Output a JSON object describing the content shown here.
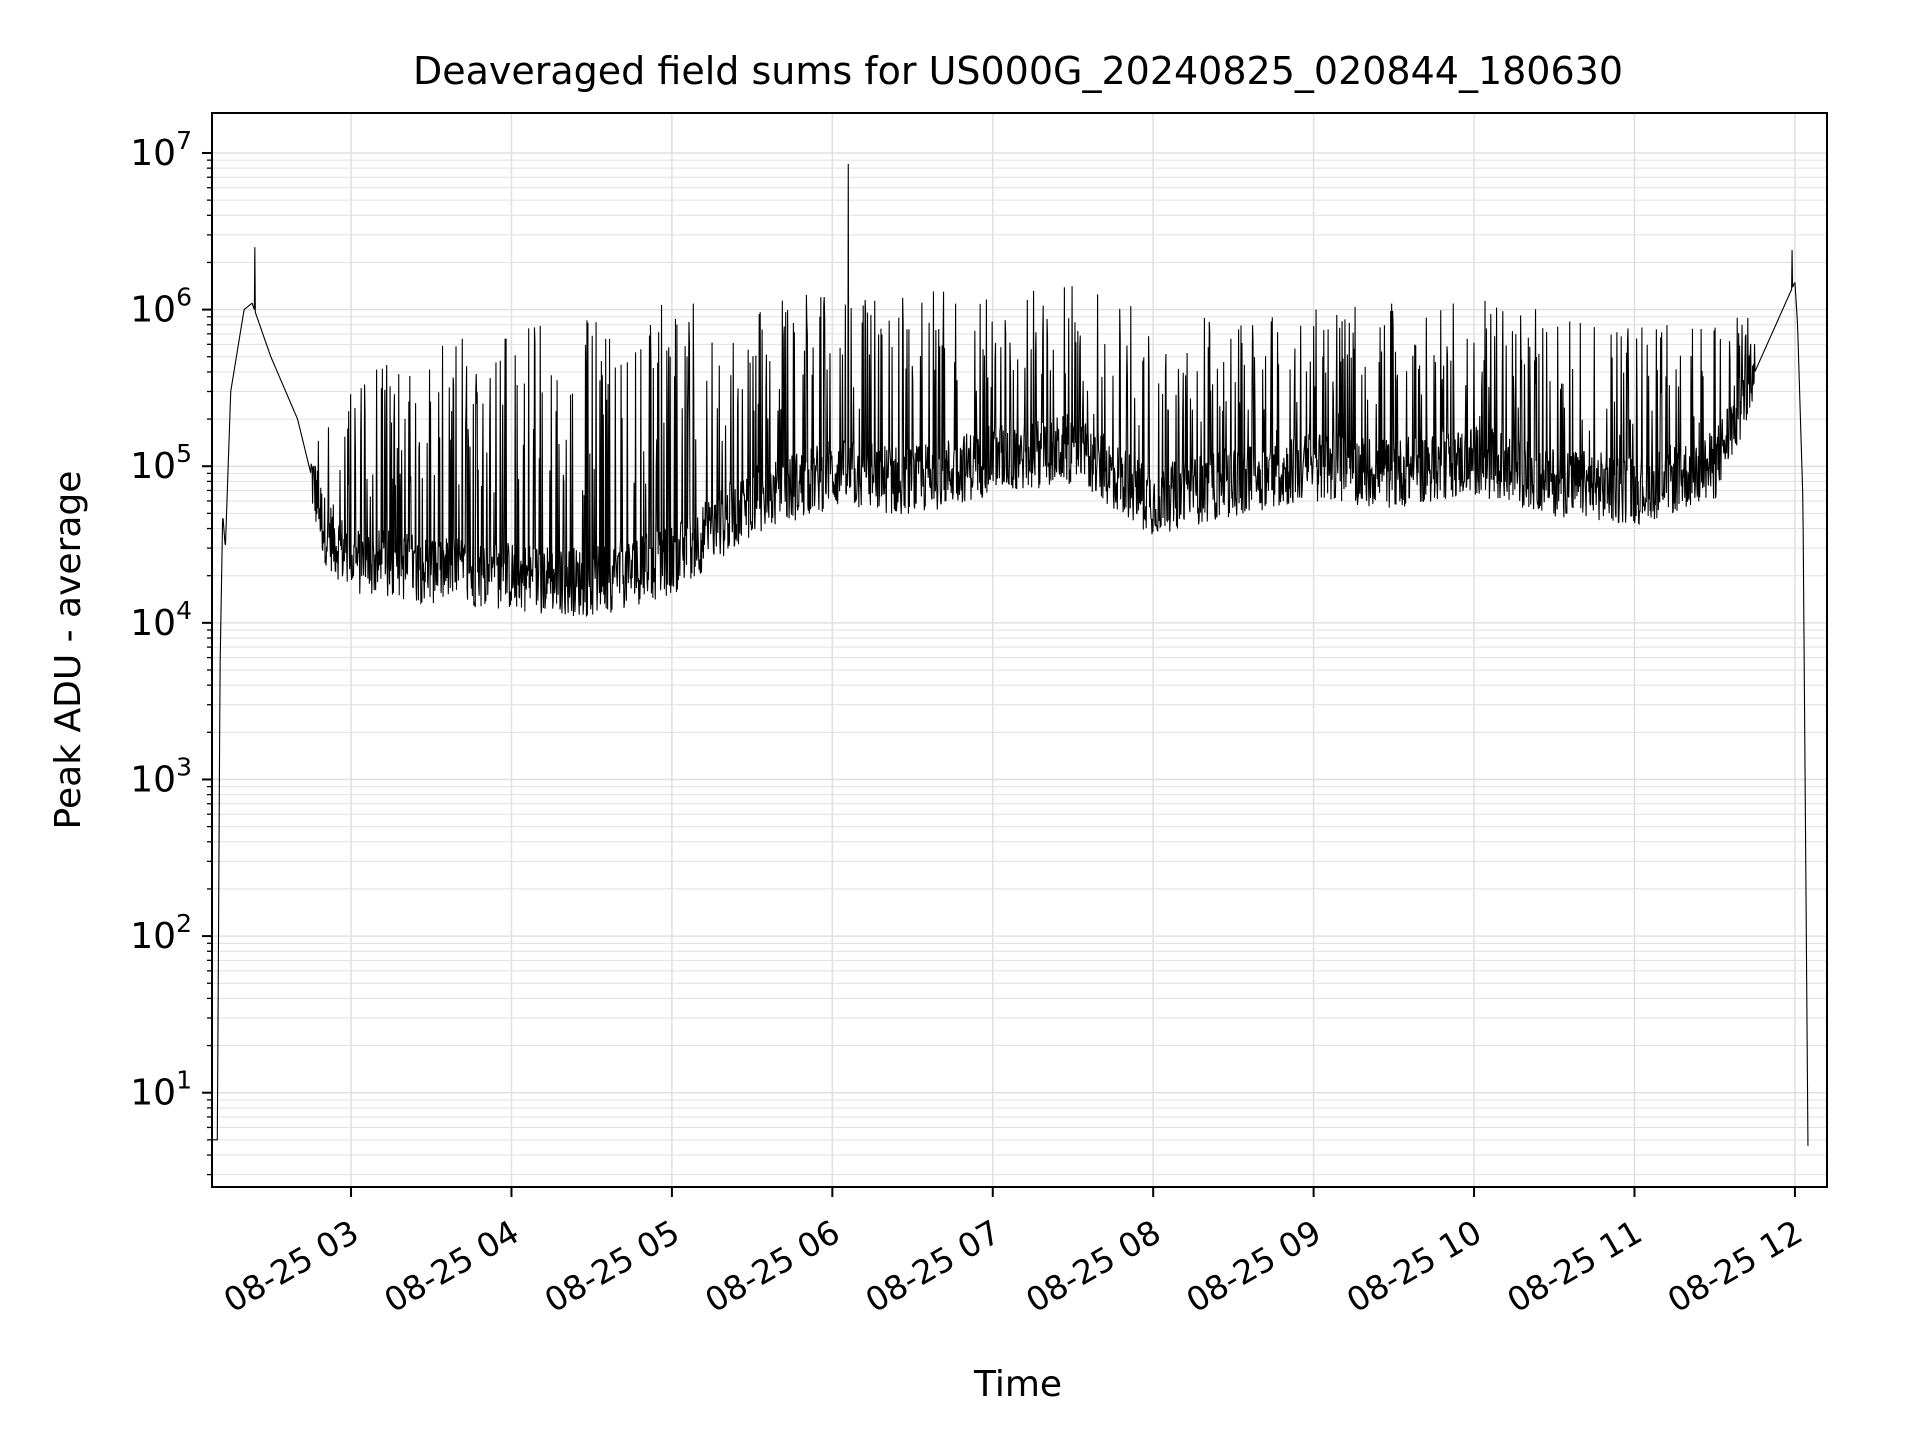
{
  "chart_data": {
    "type": "line",
    "title": "Deaveraged field sums for US000G_20240825_020844_180630",
    "xlabel": "Time",
    "ylabel": "Peak ADU - average",
    "yscale": "log",
    "ylim": [
      2.5,
      18000000
    ],
    "xlim": [
      "2024-08-25 02:08",
      "2024-08-25 12:12"
    ],
    "grid": true,
    "line_color": "#000000",
    "grid_color": "#e0e0e0",
    "x_ticks": [
      {
        "t": "2024-08-25 03:00",
        "label": "08-25 03"
      },
      {
        "t": "2024-08-25 04:00",
        "label": "08-25 04"
      },
      {
        "t": "2024-08-25 05:00",
        "label": "08-25 05"
      },
      {
        "t": "2024-08-25 06:00",
        "label": "08-25 06"
      },
      {
        "t": "2024-08-25 07:00",
        "label": "08-25 07"
      },
      {
        "t": "2024-08-25 08:00",
        "label": "08-25 08"
      },
      {
        "t": "2024-08-25 09:00",
        "label": "08-25 09"
      },
      {
        "t": "2024-08-25 10:00",
        "label": "08-25 10"
      },
      {
        "t": "2024-08-25 11:00",
        "label": "08-25 11"
      },
      {
        "t": "2024-08-25 12:00",
        "label": "08-25 12"
      }
    ],
    "y_ticks": [
      {
        "value": 10,
        "base": "10",
        "exp": "1"
      },
      {
        "value": 100,
        "base": "10",
        "exp": "2"
      },
      {
        "value": 1000,
        "base": "10",
        "exp": "3"
      },
      {
        "value": 10000,
        "base": "10",
        "exp": "4"
      },
      {
        "value": 100000,
        "base": "10",
        "exp": "5"
      },
      {
        "value": 1000000,
        "base": "10",
        "exp": "6"
      },
      {
        "value": 10000000,
        "base": "10",
        "exp": "7"
      }
    ],
    "series": [
      {
        "baseline": [
          [
            "2024-08-25 02:08",
            5
          ],
          [
            "2024-08-25 02:10",
            5
          ],
          [
            "2024-08-25 02:11",
            5000
          ],
          [
            "2024-08-25 02:12",
            50000
          ],
          [
            "2024-08-25 02:13",
            30000
          ],
          [
            "2024-08-25 02:15",
            300000
          ],
          [
            "2024-08-25 02:20",
            1000000
          ],
          [
            "2024-08-25 02:23",
            1100000
          ],
          [
            "2024-08-25 02:30",
            500000
          ],
          [
            "2024-08-25 02:40",
            200000
          ],
          [
            "2024-08-25 02:50",
            40000
          ],
          [
            "2024-08-25 03:00",
            25000
          ],
          [
            "2024-08-25 03:30",
            22000
          ],
          [
            "2024-08-25 04:00",
            20000
          ],
          [
            "2024-08-25 04:30",
            18000
          ],
          [
            "2024-08-25 05:00",
            25000
          ],
          [
            "2024-08-25 05:30",
            60000
          ],
          [
            "2024-08-25 06:00",
            90000
          ],
          [
            "2024-08-25 06:30",
            80000
          ],
          [
            "2024-08-25 07:00",
            110000
          ],
          [
            "2024-08-25 07:30",
            130000
          ],
          [
            "2024-08-25 08:00",
            60000
          ],
          [
            "2024-08-25 08:30",
            80000
          ],
          [
            "2024-08-25 09:00",
            100000
          ],
          [
            "2024-08-25 09:30",
            90000
          ],
          [
            "2024-08-25 10:00",
            110000
          ],
          [
            "2024-08-25 10:30",
            80000
          ],
          [
            "2024-08-25 11:00",
            70000
          ],
          [
            "2024-08-25 11:30",
            100000
          ],
          [
            "2024-08-25 11:45",
            400000
          ],
          [
            "2024-08-25 12:00",
            1500000
          ],
          [
            "2024-08-25 12:01",
            800000
          ],
          [
            "2024-08-25 12:03",
            60000
          ],
          [
            "2024-08-25 12:05",
            2.5
          ]
        ],
        "spike_envelope": [
          [
            "2024-08-25 02:50",
            300000
          ],
          [
            "2024-08-25 03:30",
            600000
          ],
          [
            "2024-08-25 04:00",
            900000
          ],
          [
            "2024-08-25 05:00",
            1100000
          ],
          [
            "2024-08-25 06:00",
            1300000
          ],
          [
            "2024-08-25 07:00",
            1400000
          ],
          [
            "2024-08-25 07:40",
            1450000
          ],
          [
            "2024-08-25 08:00",
            900000
          ],
          [
            "2024-08-25 09:00",
            1000000
          ],
          [
            "2024-08-25 10:00",
            1200000
          ],
          [
            "2024-08-25 11:00",
            800000
          ],
          [
            "2024-08-25 11:40",
            900000
          ]
        ],
        "notable_peaks": [
          [
            "2024-08-25 02:24",
            2500000
          ],
          [
            "2024-08-25 06:06",
            8500000
          ],
          [
            "2024-08-25 11:59",
            2400000
          ]
        ]
      }
    ]
  }
}
